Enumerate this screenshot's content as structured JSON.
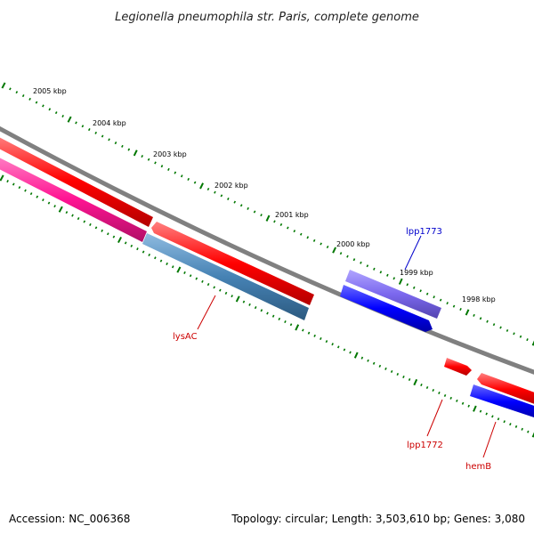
{
  "title": "Legionella pneumophila str. Paris, complete genome",
  "footer": {
    "accession": "Accession: NC_006368",
    "topology": "Topology: circular; Length: 3,503,610 bp; Genes: 3,080"
  },
  "kbp_labels": [
    "2005 kbp",
    "2004 kbp",
    "2003 kbp",
    "2002 kbp",
    "2001 kbp",
    "2000 kbp",
    "1999 kbp",
    "1998 kbp"
  ],
  "genes": [
    {
      "name": "lysAC",
      "color": "#cc0000"
    },
    {
      "name": "lpp1773",
      "color": "#0000cc"
    },
    {
      "name": "lpp1772",
      "color": "#cc0000"
    },
    {
      "name": "hemB",
      "color": "#cc0000"
    }
  ],
  "colors": {
    "forward_cds": "#ff0000",
    "reverse_cds": "#0000ff",
    "pink_feature": "#ff1493",
    "steelblue_feature": "#4682b4",
    "purple_feature": "#7b68ee",
    "backbone": "#808080",
    "tick": "#007700"
  }
}
